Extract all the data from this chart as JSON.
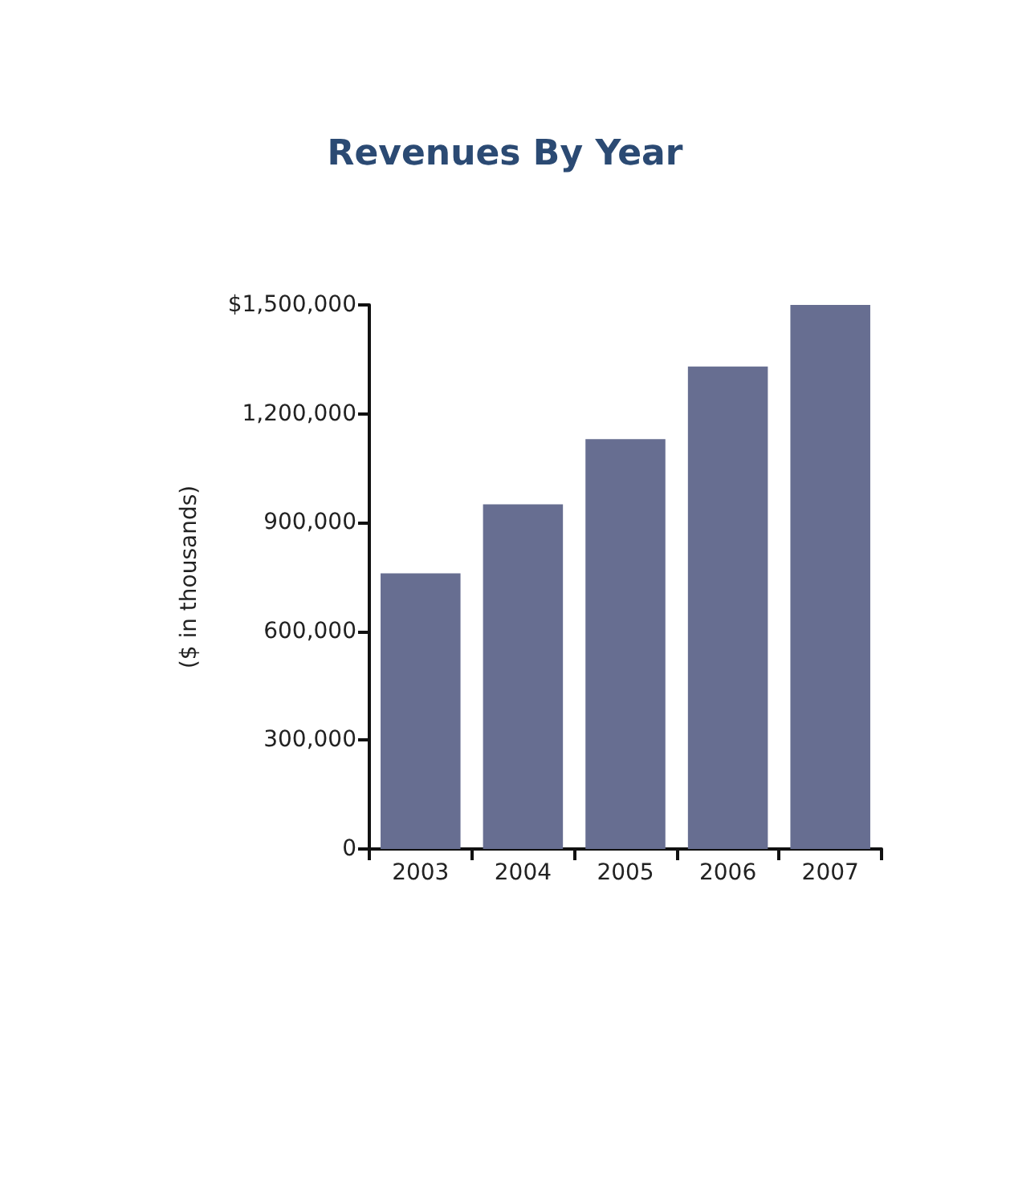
{
  "chart_data": {
    "type": "bar",
    "title": "Revenues By Year",
    "ylabel": "($ in thousands)",
    "categories": [
      "2003",
      "2004",
      "2005",
      "2006",
      "2007"
    ],
    "values": [
      760000,
      950000,
      1130000,
      1330000,
      1500000
    ],
    "color": "#676e91",
    "ylim": [
      0,
      1500000
    ],
    "yticks": [
      {
        "value": 0,
        "label": "0"
      },
      {
        "value": 300000,
        "label": "300,000"
      },
      {
        "value": 600000,
        "label": "600,000"
      },
      {
        "value": 900000,
        "label": "900,000"
      },
      {
        "value": 1200000,
        "label": "1,200,000"
      },
      {
        "value": 1500000,
        "label": "$1,500,000"
      }
    ],
    "grid": false
  }
}
